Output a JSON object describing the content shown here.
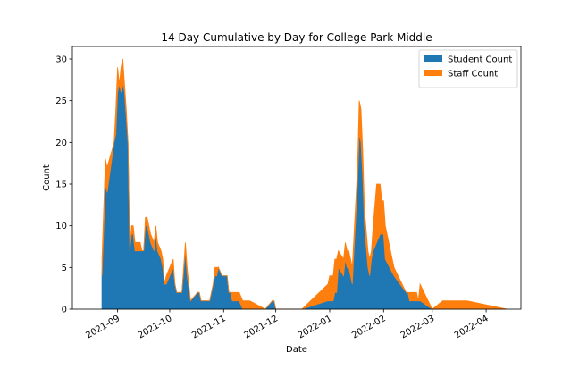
{
  "chart_data": {
    "type": "area",
    "stacked": true,
    "title": "14 Day Cumulative by Day for College Park Middle",
    "xlabel": "Date",
    "ylabel": "Count",
    "xlim": [
      "2021-08-06",
      "2022-04-21"
    ],
    "ylim": [
      0,
      31.5
    ],
    "grid": false,
    "legend_position": "top-right",
    "x_ticks": [
      "2021-09",
      "2021-10",
      "2021-11",
      "2021-12",
      "2022-01",
      "2022-02",
      "2022-03",
      "2022-04"
    ],
    "y_ticks": [
      0,
      5,
      10,
      15,
      20,
      25,
      30
    ],
    "x": [
      "2021-08-23",
      "2021-08-25",
      "2021-08-26",
      "2021-08-30",
      "2021-08-31",
      "2021-09-01",
      "2021-09-02",
      "2021-09-03",
      "2021-09-04",
      "2021-09-05",
      "2021-09-06",
      "2021-09-07",
      "2021-09-08",
      "2021-09-09",
      "2021-09-10",
      "2021-09-11",
      "2021-09-12",
      "2021-09-13",
      "2021-09-14",
      "2021-09-15",
      "2021-09-16",
      "2021-09-17",
      "2021-09-18",
      "2021-09-19",
      "2021-09-20",
      "2021-09-22",
      "2021-09-23",
      "2021-09-24",
      "2021-09-26",
      "2021-09-27",
      "2021-09-28",
      "2021-09-29",
      "2021-10-03",
      "2021-10-04",
      "2021-10-05",
      "2021-10-06",
      "2021-10-08",
      "2021-10-10",
      "2021-10-11",
      "2021-10-13",
      "2021-10-17",
      "2021-10-18",
      "2021-10-19",
      "2021-10-20",
      "2021-10-22",
      "2021-10-24",
      "2021-10-25",
      "2021-10-26",
      "2021-10-27",
      "2021-10-28",
      "2021-10-29",
      "2021-10-31",
      "2021-11-01",
      "2021-11-03",
      "2021-11-04",
      "2021-11-05",
      "2021-11-06",
      "2021-11-08",
      "2021-11-09",
      "2021-11-10",
      "2021-11-12",
      "2021-11-14",
      "2021-11-16",
      "2021-11-25",
      "2021-11-29",
      "2021-11-30",
      "2021-12-01",
      "2021-12-14",
      "2021-12-16",
      "2021-12-31",
      "2022-01-01",
      "2022-01-02",
      "2022-01-03",
      "2022-01-04",
      "2022-01-05",
      "2022-01-06",
      "2022-01-09",
      "2022-01-10",
      "2022-01-11",
      "2022-01-12",
      "2022-01-13",
      "2022-01-14",
      "2022-01-17",
      "2022-01-18",
      "2022-01-19",
      "2022-01-20",
      "2022-01-21",
      "2022-01-23",
      "2022-01-24",
      "2022-01-25",
      "2022-01-26",
      "2022-01-28",
      "2022-01-30",
      "2022-01-31",
      "2022-02-01",
      "2022-02-02",
      "2022-02-07",
      "2022-02-14",
      "2022-02-15",
      "2022-02-16",
      "2022-02-18",
      "2022-02-20",
      "2022-02-21",
      "2022-02-22",
      "2022-03-01",
      "2022-03-07",
      "2022-03-14",
      "2022-03-15",
      "2022-03-21",
      "2022-04-13"
    ],
    "series": [
      {
        "name": "Student Count",
        "color": "#1f77b4",
        "values": [
          4,
          15,
          14,
          20,
          21,
          26,
          27,
          26,
          27,
          26,
          23,
          20,
          7,
          9,
          9,
          7,
          7,
          7,
          7,
          7,
          7,
          10,
          10,
          9,
          8,
          7,
          9,
          7,
          6,
          5,
          3,
          3,
          5,
          3,
          2,
          2,
          2,
          7,
          4,
          1,
          2,
          2,
          1,
          1,
          1,
          1,
          2,
          3,
          4,
          4,
          5,
          4,
          4,
          4,
          2,
          2,
          1,
          1,
          1,
          1,
          0,
          0,
          0,
          0,
          1,
          1,
          0,
          0,
          0,
          1,
          1,
          1,
          1,
          2,
          2,
          5,
          4,
          6,
          5,
          5,
          4,
          3,
          15,
          21,
          20,
          16,
          10,
          5,
          4,
          6,
          7,
          8,
          9,
          9,
          9,
          6,
          4,
          2,
          2,
          1,
          1,
          1,
          1,
          1,
          0,
          0,
          0,
          0,
          0,
          0
        ]
      },
      {
        "name": "Staff Count",
        "color": "#ff7f0e",
        "values": [
          2,
          3,
          3,
          0,
          3,
          3,
          0,
          3,
          3,
          1,
          1,
          0,
          0,
          1,
          1,
          1,
          1,
          1,
          1,
          0,
          0,
          1,
          1,
          1,
          1,
          1,
          1,
          1,
          1,
          1,
          0,
          1,
          1,
          0,
          0,
          0,
          0,
          1,
          1,
          0,
          0,
          0,
          0,
          0,
          0,
          0,
          0,
          0,
          1,
          1,
          0,
          0,
          0,
          0,
          0,
          0,
          1,
          1,
          1,
          1,
          1,
          1,
          1,
          0,
          0,
          0,
          0,
          0,
          0,
          2,
          3,
          3,
          3,
          4,
          4,
          2,
          2,
          2,
          2,
          2,
          2,
          2,
          2,
          4,
          4,
          3,
          2,
          2,
          2,
          1,
          3,
          7,
          6,
          4,
          4,
          4,
          1,
          0,
          0,
          1,
          1,
          1,
          0,
          2,
          0,
          1,
          1,
          1,
          1,
          0
        ]
      }
    ]
  }
}
